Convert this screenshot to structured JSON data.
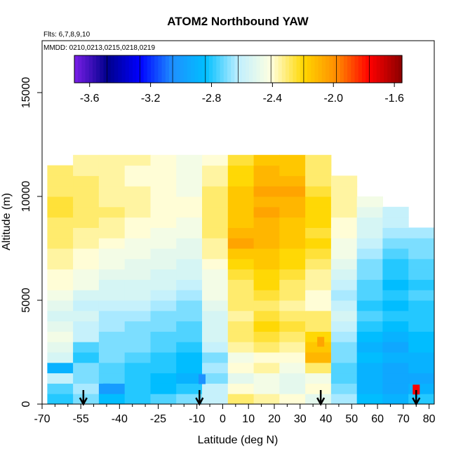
{
  "chart_data": {
    "type": "heatmap",
    "title": "ATOM2 Northbound YAW",
    "flights_label": "Flts: 6,7,8,9,10",
    "dates_label": "MMDD: 0210,0213,0215,0218,0219",
    "xlabel": "Latitude (deg N)",
    "ylabel": "Altitude (m)",
    "xlim": [
      -70,
      82
    ],
    "ylim": [
      0,
      17500
    ],
    "x_ticks_major": [
      -70,
      -55,
      -40,
      -25,
      -10,
      0,
      10,
      20,
      30,
      40,
      50,
      60,
      70,
      80
    ],
    "x_ticks_minor": [
      -65,
      -60,
      -50,
      -45,
      -35,
      -30,
      -20,
      -15,
      -5,
      5,
      15,
      25,
      35,
      45,
      55,
      65,
      75
    ],
    "x_tick_labels": [
      "-70",
      "-55",
      "-40",
      "-25",
      "-10",
      "0",
      "10",
      "20",
      "30",
      "40",
      "50",
      "60",
      "70",
      "80"
    ],
    "y_ticks": [
      0,
      5000,
      10000,
      15000
    ],
    "y_tick_labels": [
      "0",
      "5000",
      "10000",
      "15000"
    ],
    "colorbar": {
      "range": [
        -3.7,
        -1.55
      ],
      "ticks": [
        -3.6,
        -3.2,
        -2.8,
        -2.4,
        -2.0,
        -1.6
      ],
      "tick_labels": [
        "-3.6",
        "-3.2",
        "-2.8",
        "-2.4",
        "-2.0",
        "-1.6"
      ],
      "colors": [
        "#7b1fe8",
        "#00008b",
        "#0000ff",
        "#1e90ff",
        "#00bfff",
        "#bfefff",
        "#ffffe0",
        "#ffd700",
        "#ff8c00",
        "#ff0000",
        "#8b0000"
      ]
    },
    "altitude_bins": [
      0,
      500,
      1000,
      1500,
      2000,
      2500,
      3000,
      3500,
      4000,
      4500,
      5000,
      5500,
      6000,
      6500,
      7000,
      7500,
      8000,
      8500,
      9000,
      9500,
      10000,
      10500,
      11000,
      11500,
      12000
    ],
    "lat_bins": [
      -70,
      -60,
      -50,
      -40,
      -30,
      -20,
      -10,
      0,
      10,
      20,
      30,
      40,
      50,
      60,
      70,
      80
    ],
    "values": [
      [
        -2.8,
        -2.7,
        -2.85,
        -2.8,
        -2.75,
        -2.7,
        -2.6,
        -2.3,
        -2.35,
        -2.4,
        -2.5,
        -2.65,
        -2.85,
        -2.9,
        -2.8
      ],
      [
        -2.75,
        -2.65,
        -3.0,
        -2.8,
        -2.85,
        -2.8,
        -2.6,
        -2.4,
        -2.45,
        -2.5,
        -2.4,
        -2.7,
        -2.9,
        -2.95,
        -2.9
      ],
      [
        -2.6,
        -2.7,
        -2.75,
        -2.8,
        -2.85,
        -2.9,
        -2.7,
        -2.5,
        -2.45,
        -2.5,
        -2.45,
        -2.75,
        -2.9,
        -2.95,
        -2.95
      ],
      [
        -2.9,
        -2.7,
        -2.75,
        -2.8,
        -2.8,
        -2.85,
        -2.65,
        -2.4,
        -2.35,
        -2.45,
        -2.3,
        -2.75,
        -2.9,
        -2.95,
        -2.9
      ],
      [
        -2.55,
        -2.8,
        -2.7,
        -2.75,
        -2.8,
        -2.85,
        -2.7,
        -2.45,
        -2.4,
        -2.4,
        -2.1,
        -2.7,
        -2.85,
        -2.9,
        -2.9
      ],
      [
        -2.5,
        -2.75,
        -2.7,
        -2.7,
        -2.75,
        -2.8,
        -2.6,
        -2.35,
        -2.3,
        -2.35,
        -2.15,
        -2.7,
        -2.9,
        -2.95,
        -2.85
      ],
      [
        -2.45,
        -2.6,
        -2.7,
        -2.7,
        -2.75,
        -2.75,
        -2.55,
        -2.3,
        -2.25,
        -2.3,
        -2.2,
        -2.65,
        -2.85,
        -2.9,
        -2.85
      ],
      [
        -2.5,
        -2.6,
        -2.65,
        -2.7,
        -2.7,
        -2.75,
        -2.55,
        -2.3,
        -2.2,
        -2.25,
        -2.3,
        -2.6,
        -2.8,
        -2.85,
        -2.8
      ],
      [
        -2.55,
        -2.55,
        -2.65,
        -2.65,
        -2.7,
        -2.7,
        -2.55,
        -2.35,
        -2.25,
        -2.3,
        -2.3,
        -2.55,
        -2.75,
        -2.8,
        -2.8
      ],
      [
        -2.5,
        -2.6,
        -2.6,
        -2.6,
        -2.65,
        -2.7,
        -2.5,
        -2.3,
        -2.3,
        -2.35,
        -2.4,
        -2.6,
        -2.8,
        -2.85,
        -2.8
      ],
      [
        -2.45,
        -2.55,
        -2.55,
        -2.55,
        -2.6,
        -2.65,
        -2.45,
        -2.3,
        -2.25,
        -2.3,
        -2.4,
        -2.65,
        -2.75,
        -2.8,
        -2.75
      ],
      [
        -2.4,
        -2.45,
        -2.55,
        -2.55,
        -2.55,
        -2.6,
        -2.45,
        -2.3,
        -2.2,
        -2.3,
        -2.35,
        -2.6,
        -2.75,
        -2.85,
        -2.8
      ],
      [
        -2.4,
        -2.45,
        -2.5,
        -2.5,
        -2.55,
        -2.55,
        -2.45,
        -2.25,
        -2.2,
        -2.25,
        -2.35,
        -2.55,
        -2.7,
        -2.8,
        -2.75
      ],
      [
        -2.35,
        -2.4,
        -2.45,
        -2.5,
        -2.5,
        -2.55,
        -2.4,
        -2.2,
        -2.15,
        -2.2,
        -2.3,
        -2.5,
        -2.7,
        -2.8,
        -2.75
      ],
      [
        -2.35,
        -2.4,
        -2.45,
        -2.45,
        -2.5,
        -2.5,
        -2.35,
        -2.15,
        -2.15,
        -2.2,
        -2.25,
        -2.45,
        -2.65,
        -2.75,
        -2.7
      ],
      [
        -2.3,
        -2.35,
        -2.4,
        -2.45,
        -2.45,
        -2.5,
        -2.35,
        -2.05,
        -2.1,
        -2.15,
        -2.2,
        -2.45,
        -2.6,
        -2.7,
        -2.7
      ],
      [
        -2.3,
        -2.35,
        -2.35,
        -2.4,
        -2.45,
        -2.45,
        -2.3,
        -2.1,
        -2.1,
        -2.15,
        -2.25,
        -2.4,
        -2.55,
        -2.65,
        -2.65
      ],
      [
        -2.3,
        -2.3,
        -2.35,
        -2.4,
        -2.4,
        -2.45,
        -2.3,
        -2.15,
        -2.1,
        -2.15,
        -2.2,
        -2.4,
        -2.55,
        -2.6,
        null
      ],
      [
        -2.25,
        -2.3,
        -2.3,
        -2.35,
        -2.4,
        -2.4,
        -2.3,
        -2.15,
        -2.05,
        -2.1,
        -2.2,
        -2.35,
        -2.5,
        -2.6,
        null
      ],
      [
        -2.25,
        -2.3,
        -2.35,
        -2.35,
        -2.4,
        -2.4,
        -2.3,
        -2.15,
        -2.1,
        -2.1,
        -2.2,
        -2.35,
        -2.45,
        null,
        null
      ],
      [
        -2.3,
        -2.3,
        -2.35,
        -2.35,
        -2.4,
        -2.45,
        -2.3,
        -2.15,
        -2.05,
        -2.05,
        -2.25,
        -2.35,
        null,
        null,
        null
      ],
      [
        -2.3,
        -2.3,
        -2.35,
        -2.4,
        -2.4,
        -2.45,
        -2.35,
        -2.2,
        -2.1,
        -2.1,
        -2.3,
        -2.35,
        null,
        null,
        null
      ],
      [
        -2.3,
        -2.35,
        -2.35,
        -2.4,
        -2.4,
        -2.45,
        -2.35,
        -2.2,
        -2.1,
        -2.15,
        -2.3,
        null,
        null,
        null,
        null
      ],
      [
        null,
        -2.35,
        -2.35,
        -2.35,
        -2.4,
        -2.45,
        -2.4,
        -2.25,
        -2.15,
        -2.15,
        -2.3,
        null,
        null,
        null,
        null
      ]
    ],
    "highlights": [
      {
        "lat": 75,
        "alt": 700,
        "value": -1.75
      },
      {
        "lat": 38,
        "alt": 3000,
        "value": -2.05
      },
      {
        "lat": -8,
        "alt": 1200,
        "value": -3.05
      },
      {
        "lat": -45,
        "alt": 750,
        "value": -3.0
      }
    ],
    "arrow_latitudes": [
      -54,
      -9,
      38,
      75
    ],
    "grid": false,
    "legend": "top"
  }
}
